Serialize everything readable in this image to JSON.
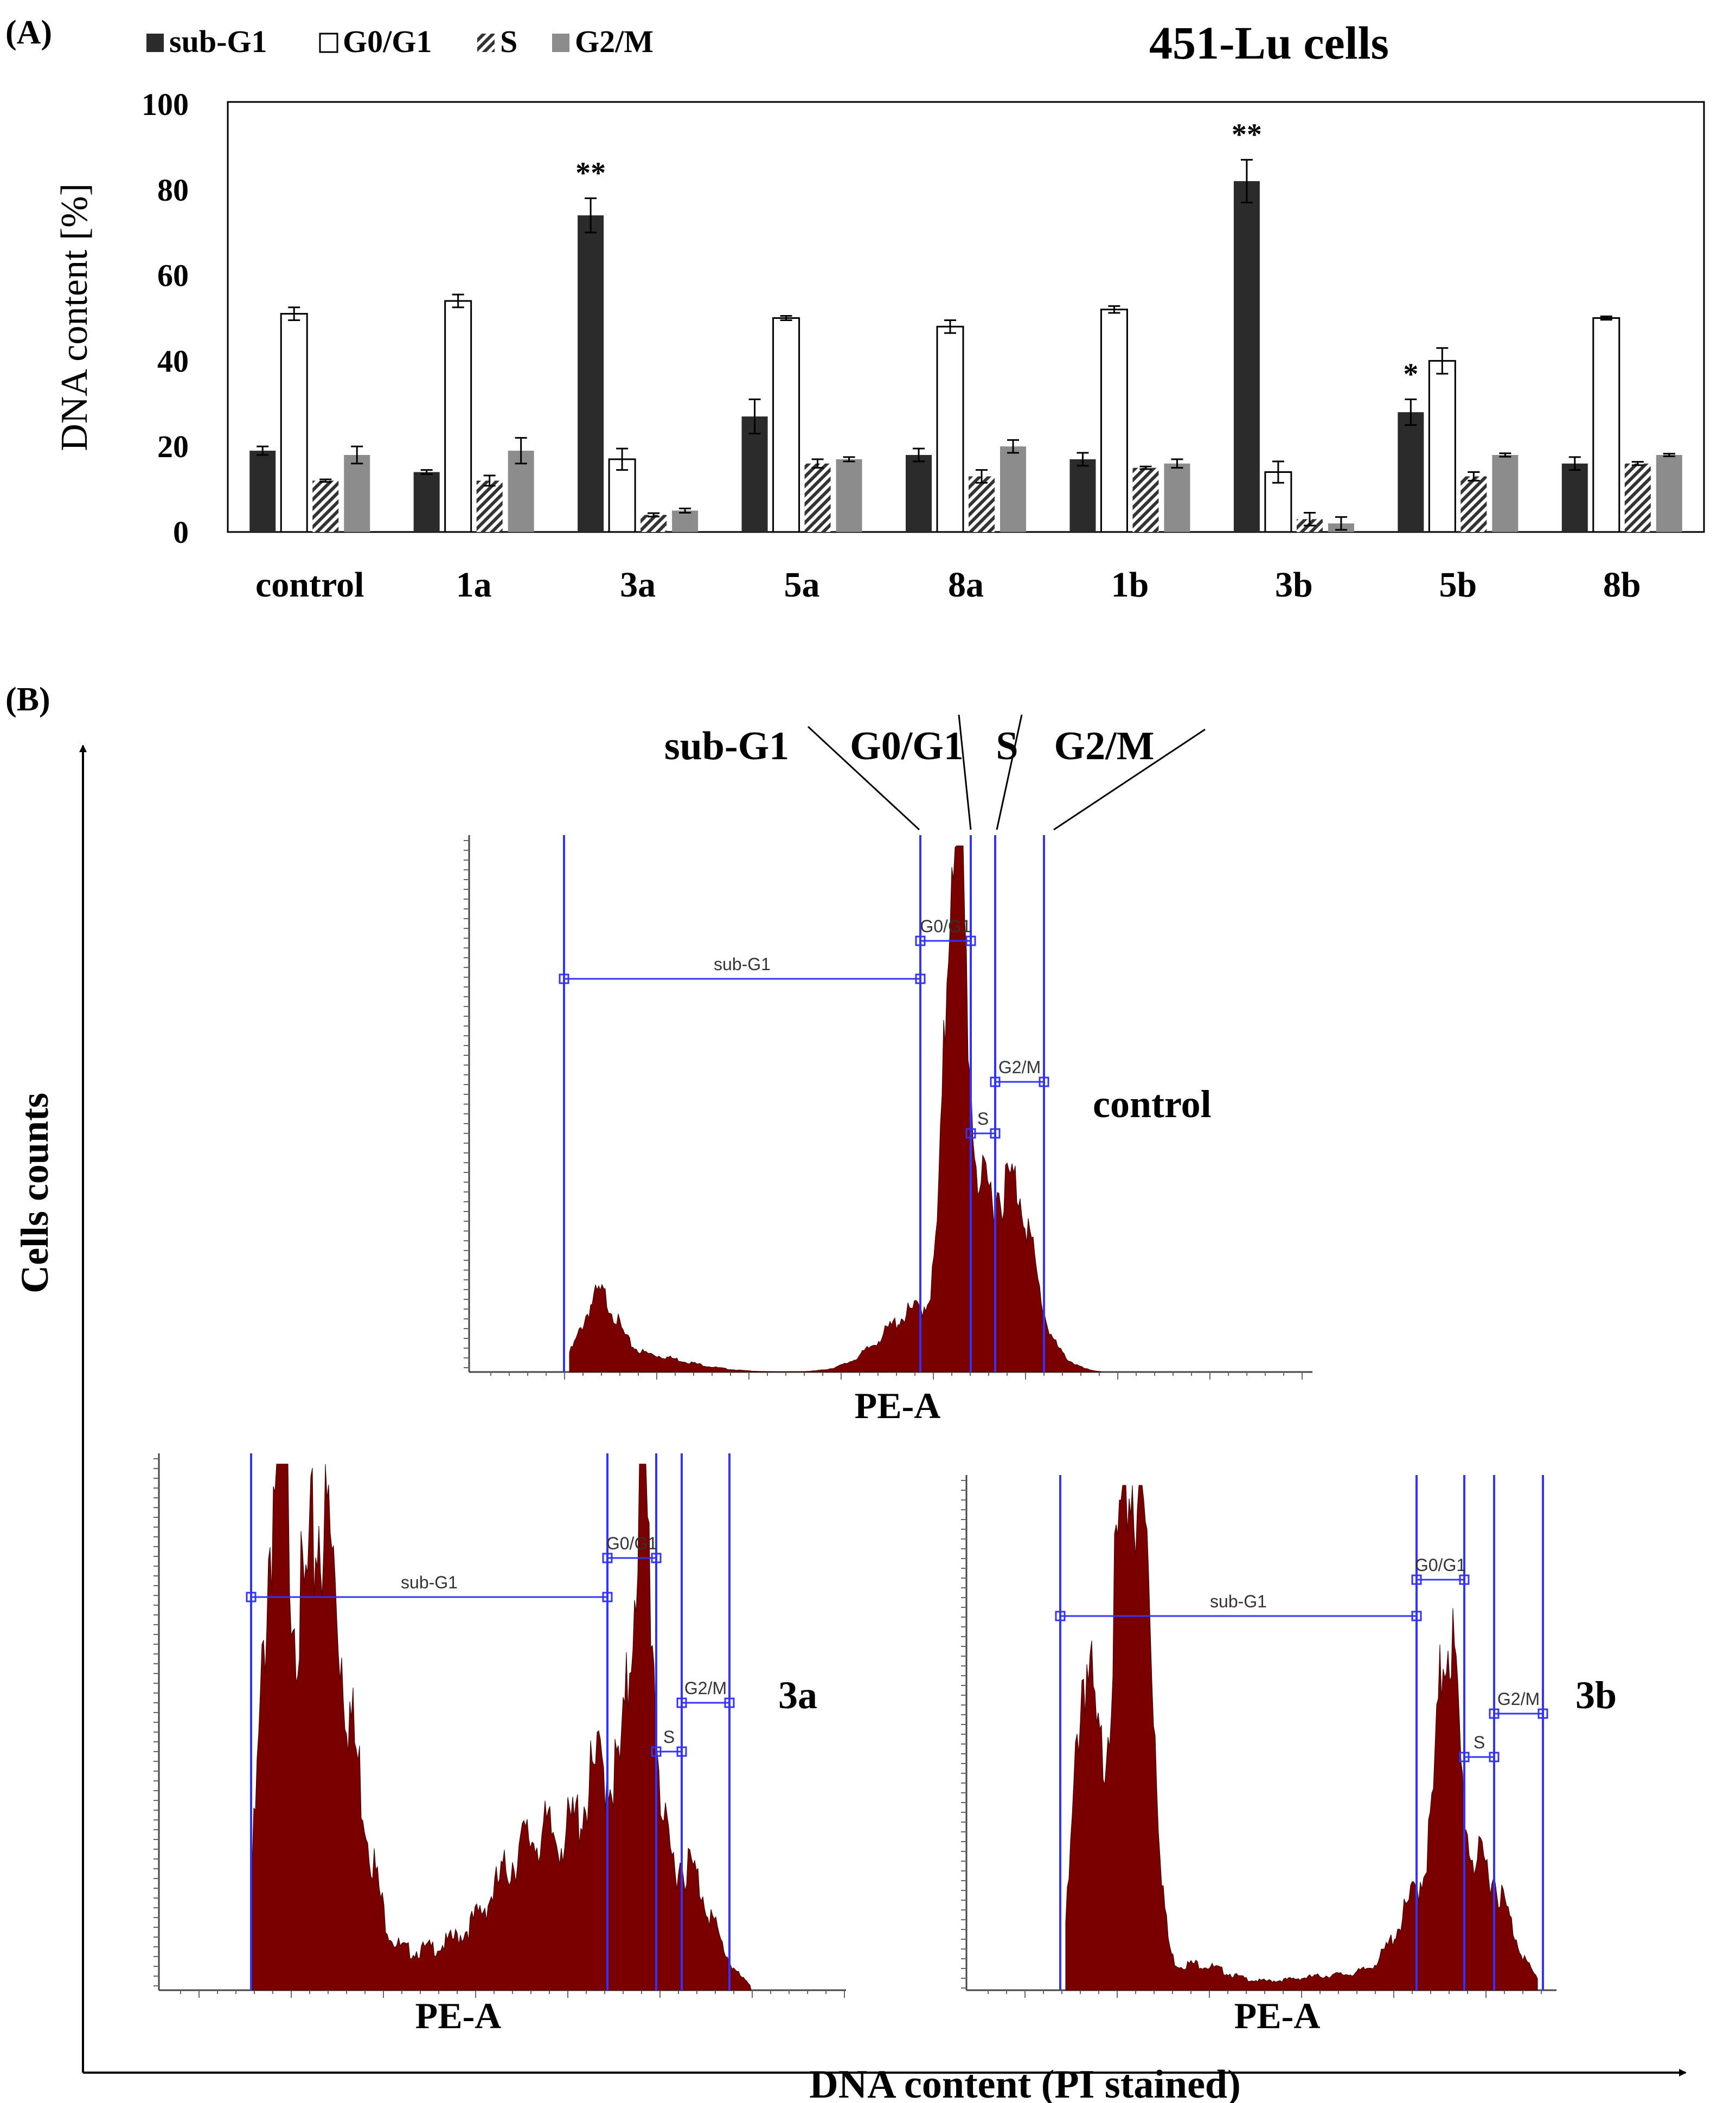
{
  "panelA": {
    "label": "(A)",
    "title": "451-Lu cells",
    "legend": [
      {
        "name": "sub-G1",
        "style": "dark"
      },
      {
        "name": "G0/G1",
        "style": "white"
      },
      {
        "name": "S",
        "style": "hatch"
      },
      {
        "name": "G2/M",
        "style": "gray"
      }
    ]
  },
  "panelB": {
    "label": "(B)",
    "yaxis_label": "Cells counts",
    "xaxis_label": "DNA content (PI stained)",
    "phase_header": [
      "sub-G1",
      "G0/G1",
      "S",
      "G2/M"
    ],
    "histograms": [
      {
        "label": "control",
        "xlabel": "PE-A",
        "gates": [
          "sub-G1",
          "G0/G1",
          "S",
          "G2/M"
        ]
      },
      {
        "label": "3a",
        "xlabel": "PE-A",
        "gates": [
          "sub-G1",
          "G0/G1",
          "S",
          "G2/M"
        ]
      },
      {
        "label": "3b",
        "xlabel": "PE-A",
        "gates": [
          "sub-G1",
          "G0/G1",
          "S",
          "G2/M"
        ]
      }
    ]
  },
  "colors": {
    "subG1": "#2b2b2b",
    "G0G1": "#ffffff",
    "S": "#333333",
    "G2M": "#8c8c8c",
    "histogram_fill": "#7a0000",
    "gate": "#3333ff"
  },
  "chart_data": {
    "type": "bar",
    "title": "451-Lu cells",
    "xlabel": "",
    "ylabel": "DNA content [%]",
    "ylim": [
      0,
      100
    ],
    "yticks": [
      0,
      20,
      40,
      60,
      80,
      100
    ],
    "categories": [
      "control",
      "1a",
      "3a",
      "5a",
      "8a",
      "1b",
      "3b",
      "5b",
      "8b"
    ],
    "series": [
      {
        "name": "sub-G1",
        "values": [
          19,
          14,
          74,
          27,
          18,
          17,
          82,
          28,
          16
        ],
        "errors": [
          1,
          0.5,
          4,
          4,
          1.5,
          1.5,
          5,
          3,
          1.5
        ]
      },
      {
        "name": "G0/G1",
        "values": [
          51,
          54,
          17,
          50,
          48,
          52,
          14,
          40,
          50
        ],
        "errors": [
          1.5,
          1.5,
          2.5,
          0.5,
          1.5,
          0.8,
          2.5,
          3,
          0.4
        ]
      },
      {
        "name": "S",
        "values": [
          12,
          12,
          4,
          16,
          13,
          15,
          3,
          13,
          16
        ],
        "errors": [
          0.3,
          1.2,
          0.4,
          1,
          1.5,
          0.3,
          1.5,
          1,
          0.4
        ]
      },
      {
        "name": "G2/M",
        "values": [
          18,
          19,
          5,
          17,
          20,
          16,
          2,
          18,
          18
        ],
        "errors": [
          2,
          3,
          0.5,
          0.5,
          1.5,
          1,
          1.5,
          0.4,
          0.3
        ]
      }
    ],
    "annotations": [
      {
        "category": "3a",
        "series": "sub-G1",
        "text": "**"
      },
      {
        "category": "3b",
        "series": "sub-G1",
        "text": "**"
      },
      {
        "category": "5b",
        "series": "sub-G1",
        "text": "*"
      }
    ]
  }
}
